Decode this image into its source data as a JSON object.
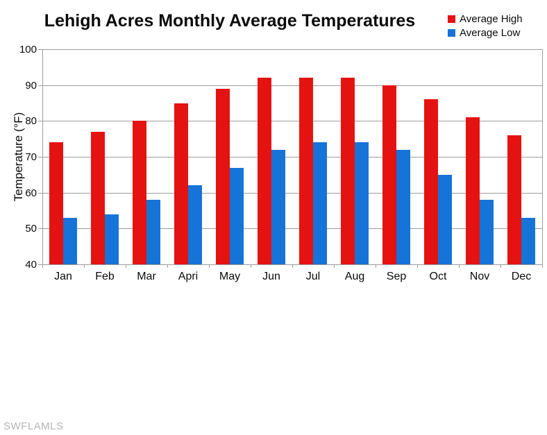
{
  "title": "Lehigh Acres Monthly Average Temperatures",
  "watermark": "SWFLAMLS",
  "chart_data": {
    "type": "bar",
    "title": "Lehigh Acres Monthly Average Temperatures",
    "categories": [
      "Jan",
      "Feb",
      "Mar",
      "Apri",
      "May",
      "Jun",
      "Jul",
      "Aug",
      "Sep",
      "Oct",
      "Nov",
      "Dec"
    ],
    "series": [
      {
        "name": "Average High",
        "color": "#e41311",
        "values": [
          74,
          77,
          80,
          85,
          89,
          92,
          92,
          92,
          90,
          86,
          81,
          76
        ]
      },
      {
        "name": "Average Low",
        "color": "#1673d8",
        "values": [
          53,
          54,
          58,
          62,
          67,
          72,
          74,
          74,
          72,
          65,
          58,
          53
        ]
      }
    ],
    "xlabel": "",
    "ylabel": "Temperature (°F)",
    "ylim": [
      40,
      100
    ],
    "yticks": [
      40,
      50,
      60,
      70,
      80,
      90,
      100
    ],
    "grid": true,
    "grid_color": "#9c9c9c",
    "legend_position": "top-right"
  }
}
